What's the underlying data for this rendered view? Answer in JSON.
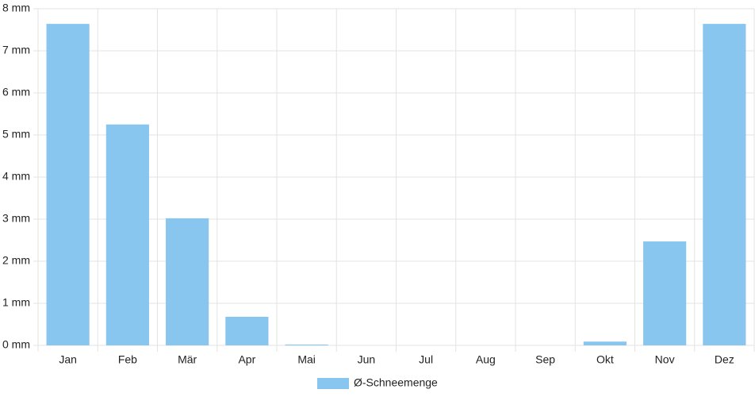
{
  "chart_data": {
    "type": "bar",
    "categories": [
      "Jan",
      "Feb",
      "Mär",
      "Apr",
      "Mai",
      "Jun",
      "Jul",
      "Aug",
      "Sep",
      "Okt",
      "Nov",
      "Dez"
    ],
    "series": [
      {
        "name": "Ø-Schneemenge",
        "color": "#88c6f0",
        "values": [
          7.64,
          5.25,
          3.02,
          0.68,
          0.02,
          0,
          0,
          0,
          0,
          0.09,
          2.47,
          7.64
        ]
      }
    ],
    "ylim": [
      0,
      8
    ],
    "yticks": [
      {
        "value": 0,
        "label": "0 mm"
      },
      {
        "value": 1,
        "label": "1 mm"
      },
      {
        "value": 2,
        "label": "2 mm"
      },
      {
        "value": 3,
        "label": "3 mm"
      },
      {
        "value": 4,
        "label": "4 mm"
      },
      {
        "value": 5,
        "label": "5 mm"
      },
      {
        "value": 6,
        "label": "6 mm"
      },
      {
        "value": 7,
        "label": "7 mm"
      },
      {
        "value": 8,
        "label": "8 mm"
      }
    ],
    "grid": true,
    "legend": "bottom"
  }
}
